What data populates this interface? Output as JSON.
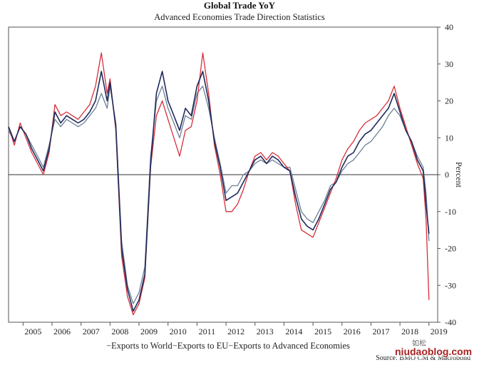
{
  "header": {
    "title": "Global Trade YoY",
    "subtitle": "Advanced Economies Trade Direction Statistics"
  },
  "footer": {
    "legend_text": "−Exports to World−Exports to EU−Exports to Advanced Economies",
    "source": "Source: BMO CM & Macrobond",
    "watermark": "niudaoblog.com",
    "watermark_top": "如松"
  },
  "chart_data": {
    "type": "line",
    "ylabel": "Percent",
    "ylim": [
      -40,
      40
    ],
    "xlim": [
      2004.5,
      2019.3
    ],
    "yticks": [
      40,
      30,
      20,
      10,
      0,
      -10,
      -20,
      -30,
      -40
    ],
    "xticks": [
      "2005",
      "2006",
      "2007",
      "2008",
      "2009",
      "2010",
      "2011",
      "2012",
      "2013",
      "2014",
      "2015",
      "2016",
      "2017",
      "2018",
      "2019"
    ],
    "grid": false,
    "zero_line": true,
    "colors": {
      "world": "#6b7f96",
      "eu": "#d62f3a",
      "advanced": "#1f2a5c"
    },
    "series": [
      {
        "name": "Exports to World",
        "color": "#6b7f96",
        "x": [
          2004.5,
          2004.7,
          2004.9,
          2005.1,
          2005.3,
          2005.5,
          2005.7,
          2005.9,
          2006.1,
          2006.3,
          2006.5,
          2006.7,
          2006.9,
          2007.1,
          2007.3,
          2007.5,
          2007.7,
          2007.9,
          2008.0,
          2008.2,
          2008.4,
          2008.6,
          2008.8,
          2009.0,
          2009.2,
          2009.4,
          2009.6,
          2009.8,
          2010.0,
          2010.2,
          2010.4,
          2010.6,
          2010.8,
          2011.0,
          2011.2,
          2011.4,
          2011.6,
          2011.8,
          2012.0,
          2012.2,
          2012.4,
          2012.6,
          2012.8,
          2013.0,
          2013.2,
          2013.4,
          2013.6,
          2013.8,
          2014.0,
          2014.2,
          2014.4,
          2014.6,
          2014.8,
          2015.0,
          2015.2,
          2015.4,
          2015.6,
          2015.8,
          2016.0,
          2016.2,
          2016.4,
          2016.6,
          2016.8,
          2017.0,
          2017.2,
          2017.4,
          2017.6,
          2017.8,
          2018.0,
          2018.2,
          2018.4,
          2018.6,
          2018.8,
          2018.9,
          2019.0
        ],
        "values": [
          12,
          9,
          13,
          11,
          8,
          5,
          2,
          8,
          15,
          13,
          15,
          14,
          13,
          14,
          16,
          18,
          22,
          18,
          24,
          14,
          -18,
          -30,
          -35,
          -32,
          -25,
          5,
          20,
          24,
          18,
          14,
          10,
          16,
          15,
          22,
          24,
          18,
          10,
          3,
          -5,
          -3,
          -3,
          0,
          1,
          3,
          4,
          3,
          4,
          3,
          2,
          2,
          -4,
          -10,
          -12,
          -13,
          -10,
          -7,
          -3,
          -2,
          1,
          3,
          4,
          6,
          8,
          9,
          11,
          13,
          16,
          18,
          16,
          12,
          9,
          5,
          2,
          -5,
          -18
        ]
      },
      {
        "name": "Exports to EU",
        "color": "#d62f3a",
        "x": [
          2004.5,
          2004.7,
          2004.9,
          2005.1,
          2005.3,
          2005.5,
          2005.7,
          2005.9,
          2006.1,
          2006.3,
          2006.5,
          2006.7,
          2006.9,
          2007.1,
          2007.3,
          2007.5,
          2007.7,
          2007.9,
          2008.0,
          2008.2,
          2008.4,
          2008.6,
          2008.8,
          2009.0,
          2009.2,
          2009.4,
          2009.6,
          2009.8,
          2010.0,
          2010.2,
          2010.4,
          2010.6,
          2010.8,
          2011.0,
          2011.2,
          2011.4,
          2011.6,
          2011.8,
          2012.0,
          2012.2,
          2012.4,
          2012.6,
          2012.8,
          2013.0,
          2013.2,
          2013.4,
          2013.6,
          2013.8,
          2014.0,
          2014.2,
          2014.4,
          2014.6,
          2014.8,
          2015.0,
          2015.2,
          2015.4,
          2015.6,
          2015.8,
          2016.0,
          2016.2,
          2016.4,
          2016.6,
          2016.8,
          2017.0,
          2017.2,
          2017.4,
          2017.6,
          2017.8,
          2018.0,
          2018.2,
          2018.4,
          2018.6,
          2018.8,
          2018.9,
          2019.0
        ],
        "values": [
          13,
          8,
          14,
          10,
          6,
          3,
          0,
          6,
          19,
          16,
          17,
          16,
          15,
          17,
          19,
          24,
          33,
          22,
          26,
          12,
          -22,
          -33,
          -38,
          -35,
          -28,
          2,
          16,
          20,
          15,
          10,
          5,
          12,
          13,
          20,
          33,
          22,
          8,
          0,
          -10,
          -10,
          -8,
          -4,
          1,
          5,
          6,
          4,
          6,
          5,
          3,
          1,
          -8,
          -15,
          -16,
          -17,
          -13,
          -9,
          -5,
          -1,
          4,
          7,
          9,
          12,
          14,
          15,
          16,
          18,
          20,
          24,
          18,
          13,
          8,
          3,
          -1,
          -12,
          -34
        ]
      },
      {
        "name": "Exports to Advanced Economies",
        "color": "#1f2a5c",
        "x": [
          2004.5,
          2004.7,
          2004.9,
          2005.1,
          2005.3,
          2005.5,
          2005.7,
          2005.9,
          2006.1,
          2006.3,
          2006.5,
          2006.7,
          2006.9,
          2007.1,
          2007.3,
          2007.5,
          2007.7,
          2007.9,
          2008.0,
          2008.2,
          2008.4,
          2008.6,
          2008.8,
          2009.0,
          2009.2,
          2009.4,
          2009.6,
          2009.8,
          2010.0,
          2010.2,
          2010.4,
          2010.6,
          2010.8,
          2011.0,
          2011.2,
          2011.4,
          2011.6,
          2011.8,
          2012.0,
          2012.2,
          2012.4,
          2012.6,
          2012.8,
          2013.0,
          2013.2,
          2013.4,
          2013.6,
          2013.8,
          2014.0,
          2014.2,
          2014.4,
          2014.6,
          2014.8,
          2015.0,
          2015.2,
          2015.4,
          2015.6,
          2015.8,
          2016.0,
          2016.2,
          2016.4,
          2016.6,
          2016.8,
          2017.0,
          2017.2,
          2017.4,
          2017.6,
          2017.8,
          2018.0,
          2018.2,
          2018.4,
          2018.6,
          2018.8,
          2018.9,
          2019.0
        ],
        "values": [
          13,
          9,
          13,
          11,
          7,
          4,
          1,
          7,
          17,
          14,
          16,
          15,
          14,
          15,
          17,
          20,
          28,
          20,
          25,
          13,
          -20,
          -31,
          -37,
          -34,
          -27,
          3,
          22,
          28,
          20,
          16,
          12,
          18,
          16,
          24,
          28,
          20,
          9,
          2,
          -7,
          -6,
          -5,
          -2,
          1,
          4,
          5,
          3,
          5,
          4,
          2,
          1,
          -6,
          -12,
          -14,
          -15,
          -12,
          -8,
          -4,
          -2,
          2,
          5,
          6,
          9,
          11,
          12,
          14,
          16,
          18,
          22,
          17,
          12,
          9,
          4,
          1,
          -8,
          -16
        ]
      }
    ]
  }
}
